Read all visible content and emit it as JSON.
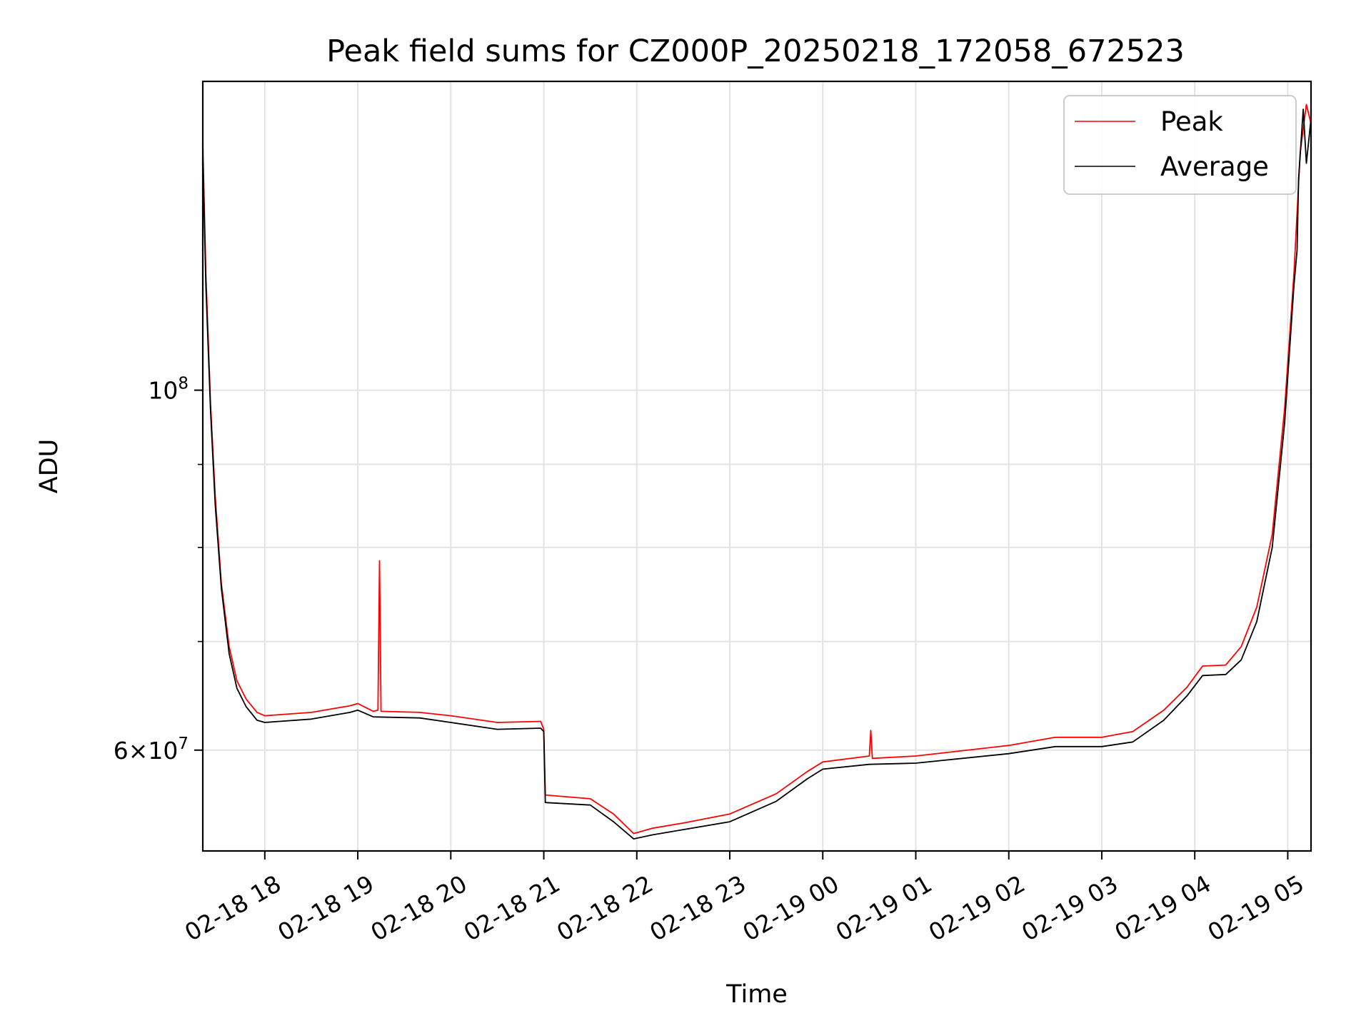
{
  "chart_data": {
    "type": "line",
    "title": "Peak field sums for CZ000P_20250218_172058_672523",
    "xlabel": "Time",
    "ylabel": "ADU",
    "x_axis_type": "datetime",
    "xlim": [
      "2025-02-18 17:20",
      "2025-02-19 05:15"
    ],
    "ylim": [
      52000000,
      155000000
    ],
    "y_scale": "log",
    "grid": true,
    "legend_position": "top-right",
    "x_ticks": [
      {
        "t": "2025-02-18 18:00",
        "label": "02-18 18"
      },
      {
        "t": "2025-02-18 19:00",
        "label": "02-18 19"
      },
      {
        "t": "2025-02-18 20:00",
        "label": "02-18 20"
      },
      {
        "t": "2025-02-18 21:00",
        "label": "02-18 21"
      },
      {
        "t": "2025-02-18 22:00",
        "label": "02-18 22"
      },
      {
        "t": "2025-02-18 23:00",
        "label": "02-18 23"
      },
      {
        "t": "2025-02-19 00:00",
        "label": "02-19 00"
      },
      {
        "t": "2025-02-19 01:00",
        "label": "02-19 01"
      },
      {
        "t": "2025-02-19 02:00",
        "label": "02-19 02"
      },
      {
        "t": "2025-02-19 03:00",
        "label": "02-19 03"
      },
      {
        "t": "2025-02-19 04:00",
        "label": "02-19 04"
      },
      {
        "t": "2025-02-19 05:00",
        "label": "02-19 05"
      }
    ],
    "y_ticks_major": [
      {
        "value": 100000000,
        "base": "10",
        "exp": "8",
        "mantissa": ""
      },
      {
        "value": 60000000,
        "base": "10",
        "exp": "7",
        "mantissa": "6"
      }
    ],
    "y_ticks_minor": [
      70000000,
      80000000,
      90000000
    ],
    "series": [
      {
        "name": "Peak",
        "color": "#ff0000",
        "points": [
          [
            "2025-02-18 17:20",
            142000000
          ],
          [
            "2025-02-18 17:22",
            118000000
          ],
          [
            "2025-02-18 17:25",
            98000000
          ],
          [
            "2025-02-18 17:28",
            86000000
          ],
          [
            "2025-02-18 17:32",
            76000000
          ],
          [
            "2025-02-18 17:37",
            69500000
          ],
          [
            "2025-02-18 17:42",
            66200000
          ],
          [
            "2025-02-18 17:48",
            64500000
          ],
          [
            "2025-02-18 17:55",
            63300000
          ],
          [
            "2025-02-18 18:00",
            63000000
          ],
          [
            "2025-02-18 18:30",
            63300000
          ],
          [
            "2025-02-18 18:55",
            63900000
          ],
          [
            "2025-02-18 19:00",
            64100000
          ],
          [
            "2025-02-18 19:10",
            63400000
          ],
          [
            "2025-02-18 19:13",
            63500000
          ],
          [
            "2025-02-18 19:14",
            78500000
          ],
          [
            "2025-02-18 19:15",
            63400000
          ],
          [
            "2025-02-18 19:40",
            63300000
          ],
          [
            "2025-02-18 20:00",
            63000000
          ],
          [
            "2025-02-18 20:30",
            62400000
          ],
          [
            "2025-02-18 20:58",
            62500000
          ],
          [
            "2025-02-18 21:00",
            61800000
          ],
          [
            "2025-02-18 21:01",
            56300000
          ],
          [
            "2025-02-18 21:30",
            56000000
          ],
          [
            "2025-02-18 21:45",
            54800000
          ],
          [
            "2025-02-18 21:58",
            53300000
          ],
          [
            "2025-02-18 22:10",
            53700000
          ],
          [
            "2025-02-18 22:30",
            54100000
          ],
          [
            "2025-02-18 23:00",
            54800000
          ],
          [
            "2025-02-18 23:30",
            56400000
          ],
          [
            "2025-02-18 23:50",
            58200000
          ],
          [
            "2025-02-19 00:00",
            59000000
          ],
          [
            "2025-02-19 00:30",
            59500000
          ],
          [
            "2025-02-19 00:31",
            61700000
          ],
          [
            "2025-02-19 00:32",
            59300000
          ],
          [
            "2025-02-19 01:00",
            59500000
          ],
          [
            "2025-02-19 02:00",
            60400000
          ],
          [
            "2025-02-19 02:30",
            61100000
          ],
          [
            "2025-02-19 03:00",
            61100000
          ],
          [
            "2025-02-19 03:20",
            61600000
          ],
          [
            "2025-02-19 03:40",
            63500000
          ],
          [
            "2025-02-19 03:55",
            65600000
          ],
          [
            "2025-02-19 04:05",
            67600000
          ],
          [
            "2025-02-19 04:20",
            67700000
          ],
          [
            "2025-02-19 04:30",
            69500000
          ],
          [
            "2025-02-19 04:40",
            73500000
          ],
          [
            "2025-02-19 04:50",
            81500000
          ],
          [
            "2025-02-19 04:58",
            97500000
          ],
          [
            "2025-02-19 05:04",
            118000000
          ],
          [
            "2025-02-19 05:08",
            140000000
          ],
          [
            "2025-02-19 05:12",
            150000000
          ],
          [
            "2025-02-19 05:15",
            146000000
          ]
        ]
      },
      {
        "name": "Average",
        "color": "#000000",
        "points": [
          [
            "2025-02-18 17:20",
            140000000
          ],
          [
            "2025-02-18 17:22",
            116000000
          ],
          [
            "2025-02-18 17:25",
            97000000
          ],
          [
            "2025-02-18 17:28",
            85000000
          ],
          [
            "2025-02-18 17:32",
            75500000
          ],
          [
            "2025-02-18 17:37",
            68800000
          ],
          [
            "2025-02-18 17:42",
            65500000
          ],
          [
            "2025-02-18 17:48",
            63800000
          ],
          [
            "2025-02-18 17:55",
            62600000
          ],
          [
            "2025-02-18 18:00",
            62400000
          ],
          [
            "2025-02-18 18:30",
            62700000
          ],
          [
            "2025-02-18 18:55",
            63300000
          ],
          [
            "2025-02-18 19:00",
            63500000
          ],
          [
            "2025-02-18 19:10",
            62900000
          ],
          [
            "2025-02-18 19:40",
            62800000
          ],
          [
            "2025-02-18 20:00",
            62400000
          ],
          [
            "2025-02-18 20:30",
            61800000
          ],
          [
            "2025-02-18 20:58",
            61900000
          ],
          [
            "2025-02-18 21:00",
            61600000
          ],
          [
            "2025-02-18 21:01",
            55700000
          ],
          [
            "2025-02-18 21:30",
            55500000
          ],
          [
            "2025-02-18 21:45",
            54200000
          ],
          [
            "2025-02-18 21:58",
            52900000
          ],
          [
            "2025-02-18 22:10",
            53200000
          ],
          [
            "2025-02-18 22:30",
            53600000
          ],
          [
            "2025-02-18 23:00",
            54200000
          ],
          [
            "2025-02-18 23:30",
            55800000
          ],
          [
            "2025-02-18 23:50",
            57600000
          ],
          [
            "2025-02-19 00:00",
            58400000
          ],
          [
            "2025-02-19 00:30",
            58800000
          ],
          [
            "2025-02-19 01:00",
            58900000
          ],
          [
            "2025-02-19 02:00",
            59700000
          ],
          [
            "2025-02-19 02:30",
            60300000
          ],
          [
            "2025-02-19 03:00",
            60300000
          ],
          [
            "2025-02-19 03:20",
            60700000
          ],
          [
            "2025-02-19 03:40",
            62600000
          ],
          [
            "2025-02-19 03:55",
            64800000
          ],
          [
            "2025-02-19 04:05",
            66700000
          ],
          [
            "2025-02-19 04:20",
            66800000
          ],
          [
            "2025-02-19 04:30",
            68200000
          ],
          [
            "2025-02-19 04:40",
            72000000
          ],
          [
            "2025-02-19 04:50",
            80000000
          ],
          [
            "2025-02-19 04:58",
            95500000
          ],
          [
            "2025-02-19 05:04",
            116000000
          ],
          [
            "2025-02-19 05:06",
            122000000
          ],
          [
            "2025-02-19 05:07",
            135000000
          ],
          [
            "2025-02-19 05:10",
            149000000
          ],
          [
            "2025-02-19 05:12",
            138000000
          ],
          [
            "2025-02-19 05:15",
            147000000
          ]
        ]
      }
    ]
  }
}
